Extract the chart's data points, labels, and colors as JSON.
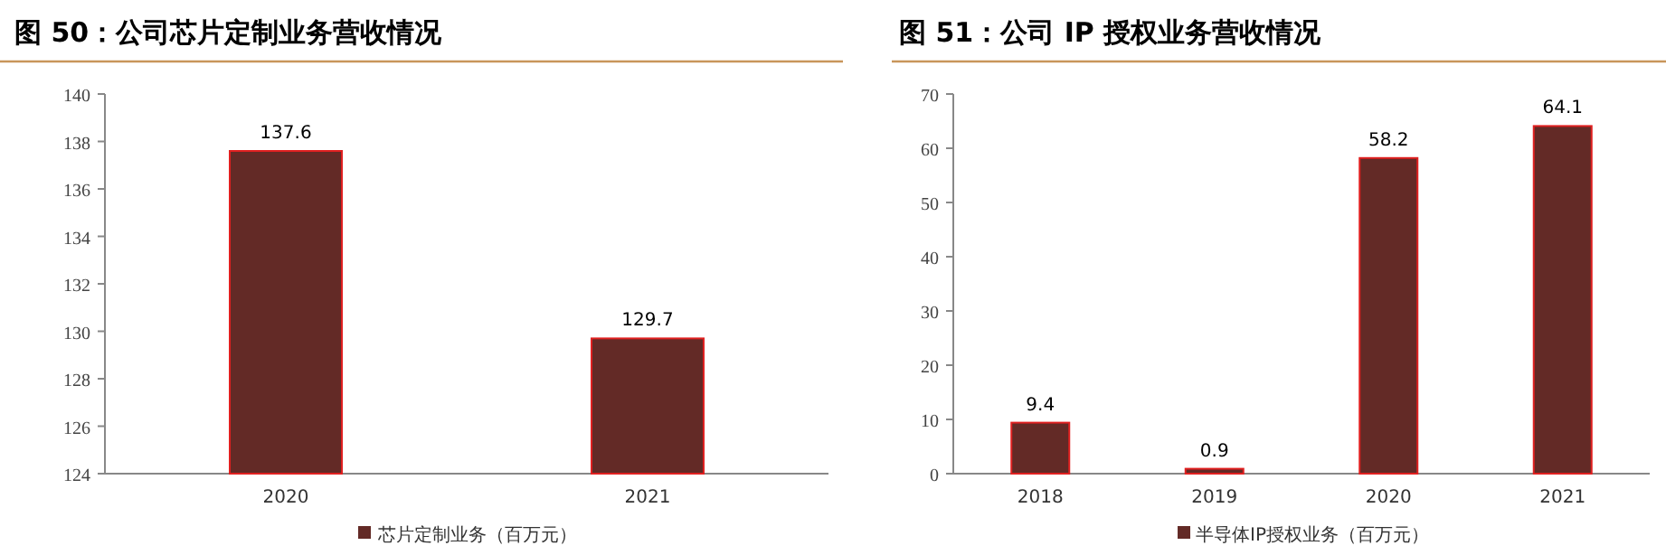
{
  "chart_data": [
    {
      "type": "bar",
      "title": "图 50：公司芯片定制业务营收情况",
      "categories": [
        "2020",
        "2021"
      ],
      "series": [
        {
          "name": "芯片定制业务（百万元）",
          "color": "#632a26",
          "values": [
            137.6,
            129.7
          ]
        }
      ],
      "ylim": [
        124,
        140
      ],
      "yticks": [
        124,
        126,
        128,
        130,
        132,
        134,
        136,
        138,
        140
      ],
      "data_labels": true,
      "legend": "bottom",
      "grid": false
    },
    {
      "type": "bar",
      "title": "图 51：公司 IP 授权业务营收情况",
      "categories": [
        "2018",
        "2019",
        "2020",
        "2021"
      ],
      "series": [
        {
          "name": "半导体IP授权业务（百万元）",
          "color": "#632a26",
          "values": [
            9.4,
            0.9,
            58.2,
            64.1
          ]
        }
      ],
      "ylim": [
        0,
        70
      ],
      "yticks": [
        0,
        10,
        20,
        30,
        40,
        50,
        60,
        70
      ],
      "data_labels": true,
      "legend": "bottom",
      "grid": false
    }
  ]
}
